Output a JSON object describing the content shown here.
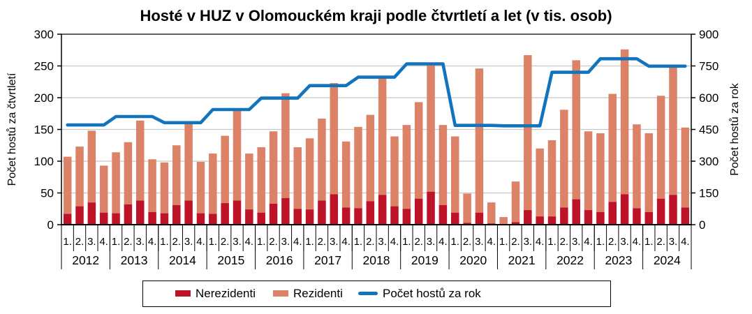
{
  "title": "Hosté v HUZ v Olomouckém kraji podle čtvrtletí a let (v tis. osob)",
  "colors": {
    "nerezidenti": "#be1228",
    "rezidenti": "#dc8267",
    "line": "#1274bc",
    "grid": "#c6c6c6",
    "axis": "#000000"
  },
  "legend": {
    "items": [
      {
        "label": "Nerezidenti",
        "color": "#be1228",
        "type": "rect"
      },
      {
        "label": "Rezidenti",
        "color": "#dc8267",
        "type": "rect"
      },
      {
        "label": "Počet hostů za rok",
        "color": "#1274bc",
        "type": "line"
      }
    ]
  },
  "chart_data": {
    "type": "bar+line",
    "title": "Hosté v HUZ v Olomouckém kraji podle čtvrtletí a let (v tis. osob)",
    "left_axis": {
      "label": "Počet hostů za čtvrtletí",
      "min": 0,
      "max": 300,
      "ticks": [
        0,
        50,
        100,
        150,
        200,
        250,
        300
      ]
    },
    "right_axis": {
      "label": "Počet hostů za rok",
      "min": 0,
      "max": 900,
      "ticks": [
        0,
        150,
        300,
        450,
        600,
        750,
        900
      ]
    },
    "quarter_labels": [
      "1.",
      "2.",
      "3.",
      "4."
    ],
    "grid": true,
    "legend_position": "bottom",
    "series_names": [
      "Nerezidenti",
      "Rezidenti",
      "Počet hostů za rok"
    ],
    "years": [
      {
        "year": "2012",
        "nerezidenti": [
          17,
          29,
          35,
          19
        ],
        "rezidenti": [
          90,
          94,
          113,
          74
        ],
        "hoste_za_rok": 471
      },
      {
        "year": "2013",
        "nerezidenti": [
          18,
          32,
          38,
          20
        ],
        "rezidenti": [
          96,
          98,
          126,
          83
        ],
        "hoste_za_rok": 511
      },
      {
        "year": "2014",
        "nerezidenti": [
          18,
          31,
          38,
          18
        ],
        "rezidenti": [
          80,
          94,
          122,
          81
        ],
        "hoste_za_rok": 482
      },
      {
        "year": "2015",
        "nerezidenti": [
          17,
          34,
          38,
          24
        ],
        "rezidenti": [
          95,
          106,
          142,
          88
        ],
        "hoste_za_rok": 544
      },
      {
        "year": "2016",
        "nerezidenti": [
          19,
          33,
          42,
          25
        ],
        "rezidenti": [
          103,
          114,
          165,
          97
        ],
        "hoste_za_rok": 598
      },
      {
        "year": "2017",
        "nerezidenti": [
          24,
          38,
          48,
          27
        ],
        "rezidenti": [
          112,
          129,
          175,
          104
        ],
        "hoste_za_rok": 657
      },
      {
        "year": "2018",
        "nerezidenti": [
          26,
          37,
          47,
          29
        ],
        "rezidenti": [
          128,
          136,
          184,
          110
        ],
        "hoste_za_rok": 697
      },
      {
        "year": "2019",
        "nerezidenti": [
          25,
          41,
          52,
          31
        ],
        "rezidenti": [
          132,
          152,
          201,
          126
        ],
        "hoste_za_rok": 760
      },
      {
        "year": "2020",
        "nerezidenti": [
          19,
          3,
          19,
          2
        ],
        "rezidenti": [
          120,
          46,
          227,
          33
        ],
        "hoste_za_rok": 469
      },
      {
        "year": "2021",
        "nerezidenti": [
          1,
          4,
          23,
          13
        ],
        "rezidenti": [
          11,
          64,
          244,
          107
        ],
        "hoste_za_rok": 467
      },
      {
        "year": "2022",
        "nerezidenti": [
          13,
          27,
          40,
          23
        ],
        "rezidenti": [
          120,
          154,
          219,
          124
        ],
        "hoste_za_rok": 720
      },
      {
        "year": "2023",
        "nerezidenti": [
          20,
          36,
          48,
          26
        ],
        "rezidenti": [
          124,
          170,
          228,
          132
        ],
        "hoste_za_rok": 784
      },
      {
        "year": "2024",
        "nerezidenti": [
          20,
          41,
          47,
          27
        ],
        "rezidenti": [
          124,
          162,
          202,
          126
        ],
        "hoste_za_rok": 749
      }
    ]
  }
}
